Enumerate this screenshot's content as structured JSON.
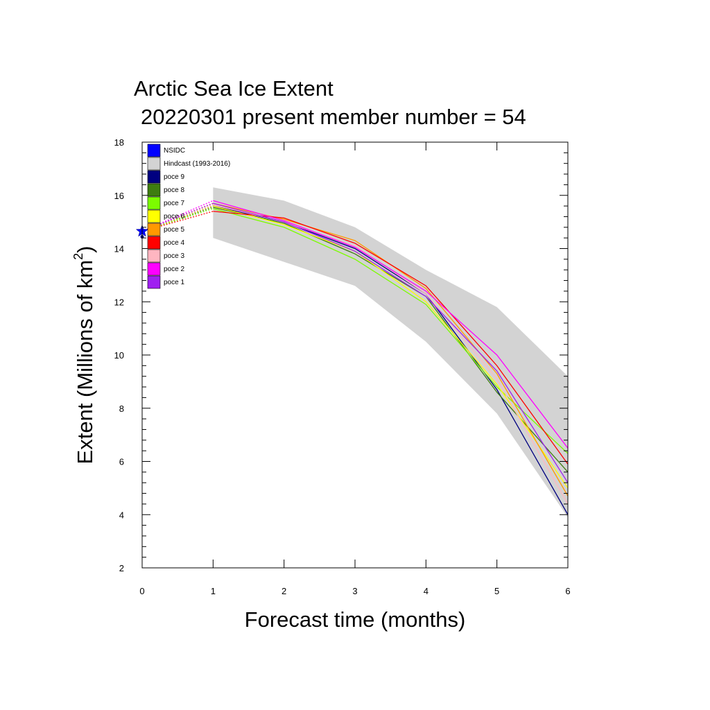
{
  "chart_data": {
    "type": "line",
    "title": "Arctic Sea Ice Extent",
    "subtitle": "20220301 present member number = 54",
    "xlabel": "Forecast time (months)",
    "ylabel_main": "Extent (Millions of km",
    "ylabel_sup": "2",
    "ylabel_close": ")",
    "xlim": [
      0,
      6
    ],
    "ylim": [
      2,
      18
    ],
    "xticks": [
      0,
      1,
      2,
      3,
      4,
      5,
      6
    ],
    "yticks": [
      2,
      4,
      6,
      8,
      10,
      12,
      14,
      16,
      18
    ],
    "grid": false,
    "legend_position": "top-left",
    "hindcast_band": {
      "name": "Hindcast (1993-2016)",
      "color": "#d3d3d3",
      "x": [
        1,
        2,
        3,
        4,
        5,
        6
      ],
      "upper": [
        16.3,
        15.8,
        14.8,
        13.2,
        11.8,
        9.2
      ],
      "lower": [
        14.4,
        13.5,
        12.6,
        10.5,
        7.8,
        3.9
      ]
    },
    "observation": {
      "name": "NSIDC",
      "color": "#0000ff",
      "x": 0,
      "y": 14.65
    },
    "series": [
      {
        "name": "poce 9",
        "color": "#000080",
        "values": [
          14.65,
          15.6,
          15.0,
          14.0,
          12.3,
          8.7,
          4.0
        ]
      },
      {
        "name": "poce 8",
        "color": "#3e7d10",
        "values": [
          14.65,
          15.55,
          14.95,
          13.8,
          12.2,
          8.6,
          5.6
        ]
      },
      {
        "name": "poce 7",
        "color": "#7cfc00",
        "values": [
          14.65,
          15.5,
          14.8,
          13.6,
          11.9,
          8.8,
          6.3
        ]
      },
      {
        "name": "poce 6",
        "color": "#ffff00",
        "values": [
          14.65,
          15.6,
          14.9,
          13.9,
          12.0,
          8.9,
          5.0
        ]
      },
      {
        "name": "poce 5",
        "color": "#ff9900",
        "values": [
          14.65,
          15.7,
          15.1,
          14.3,
          12.5,
          9.3,
          4.7
        ]
      },
      {
        "name": "poce 4",
        "color": "#ff0000",
        "values": [
          14.65,
          15.4,
          15.15,
          14.2,
          12.6,
          9.6,
          5.9
        ]
      },
      {
        "name": "poce 3",
        "color": "#ffb6c1",
        "values": [
          14.65,
          15.65,
          15.0,
          14.1,
          12.3,
          9.1,
          4.4
        ]
      },
      {
        "name": "poce 2",
        "color": "#ff00ff",
        "values": [
          14.65,
          15.8,
          15.05,
          14.05,
          12.4,
          10.0,
          6.5
        ]
      },
      {
        "name": "poce 1",
        "color": "#a020f0",
        "values": [
          14.65,
          15.7,
          15.0,
          13.9,
          12.2,
          9.4,
          5.2
        ]
      }
    ]
  }
}
